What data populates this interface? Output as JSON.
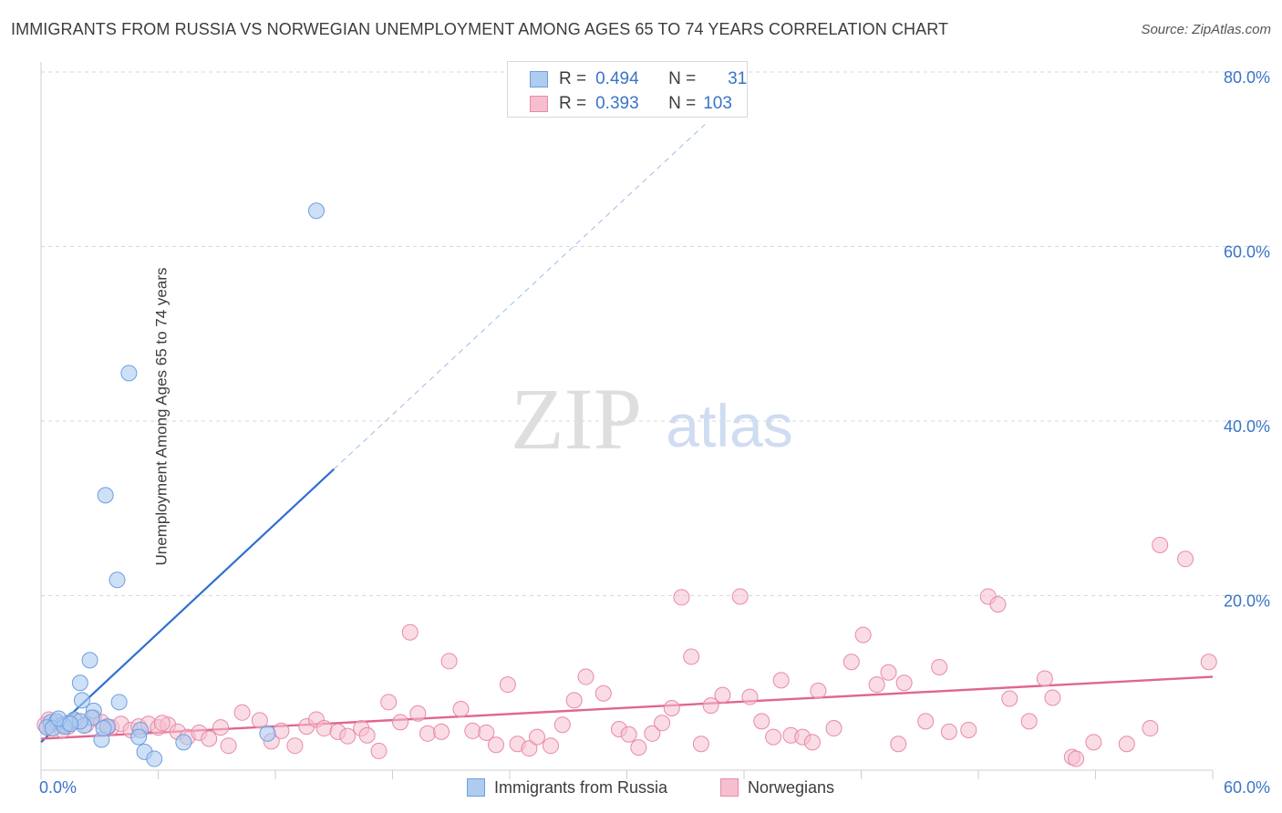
{
  "title": "IMMIGRANTS FROM RUSSIA VS NORWEGIAN UNEMPLOYMENT AMONG AGES 65 TO 74 YEARS CORRELATION CHART",
  "source": "Source: ZipAtlas.com",
  "watermark": {
    "zip": "ZIP",
    "atlas": "atlas"
  },
  "colors": {
    "blue_fill": "#aecbf0",
    "blue_stroke": "#6d9ee0",
    "blue_line": "#2f6fd0",
    "pink_fill": "#f6bfd0",
    "pink_stroke": "#e88aa8",
    "pink_line": "#e0668f",
    "axis_text": "#3a74c8",
    "grid": "#d7d7d7"
  },
  "legend": {
    "rows": [
      {
        "r_label": "R =",
        "r_value": "0.494",
        "n_label": "N =",
        "n_value": "31"
      },
      {
        "r_label": "R =",
        "r_value": "0.393",
        "n_label": "N =",
        "n_value": "103"
      }
    ]
  },
  "bottom_legend": {
    "series1": "Immigrants from Russia",
    "series2": "Norwegians"
  },
  "chart_data": {
    "type": "scatter",
    "ylabel": "Unemployment Among Ages 65 to 74 years",
    "xlabel": "",
    "xlim": [
      0,
      60
    ],
    "ylim": [
      0,
      80
    ],
    "x_tick_labels": [
      {
        "value": 0,
        "label": "0.0%"
      },
      {
        "value": 60,
        "label": "60.0%"
      }
    ],
    "y_tick_labels": [
      {
        "value": 20,
        "label": "20.0%"
      },
      {
        "value": 40,
        "label": "40.0%"
      },
      {
        "value": 60,
        "label": "60.0%"
      },
      {
        "value": 80,
        "label": "80.0%"
      }
    ],
    "series": [
      {
        "name": "Immigrants from Russia",
        "R": 0.494,
        "N": 31,
        "points": [
          [
            14.1,
            64.1
          ],
          [
            4.5,
            45.5
          ],
          [
            3.3,
            31.5
          ],
          [
            3.9,
            21.8
          ],
          [
            2.5,
            12.6
          ],
          [
            2.0,
            10.0
          ],
          [
            4.0,
            7.8
          ],
          [
            2.1,
            8.0
          ],
          [
            2.7,
            6.8
          ],
          [
            2.6,
            6.0
          ],
          [
            0.5,
            5.5
          ],
          [
            0.8,
            5.6
          ],
          [
            1.1,
            5.2
          ],
          [
            1.4,
            5.4
          ],
          [
            1.7,
            5.8
          ],
          [
            2.2,
            5.1
          ],
          [
            3.4,
            5.0
          ],
          [
            0.3,
            4.9
          ],
          [
            0.6,
            4.8
          ],
          [
            1.2,
            5.0
          ],
          [
            2.0,
            5.6
          ],
          [
            0.9,
            5.9
          ],
          [
            3.1,
            3.5
          ],
          [
            5.1,
            4.6
          ],
          [
            5.0,
            3.8
          ],
          [
            5.3,
            2.1
          ],
          [
            5.8,
            1.3
          ],
          [
            7.3,
            3.2
          ],
          [
            11.6,
            4.2
          ],
          [
            3.2,
            4.8
          ],
          [
            1.5,
            5.3
          ]
        ],
        "trend": {
          "x0": 0,
          "y0": 3.2,
          "x1": 15,
          "y1": 34.5,
          "dash_to": {
            "x": 34,
            "y": 74
          }
        }
      },
      {
        "name": "Norwegians",
        "R": 0.393,
        "N": 103,
        "points": [
          [
            0.2,
            5.2
          ],
          [
            0.5,
            4.8
          ],
          [
            0.9,
            5.4
          ],
          [
            1.4,
            5.0
          ],
          [
            1.8,
            5.6
          ],
          [
            2.3,
            5.2
          ],
          [
            2.7,
            6.0
          ],
          [
            3.1,
            5.5
          ],
          [
            3.6,
            4.9
          ],
          [
            4.1,
            5.3
          ],
          [
            4.6,
            4.6
          ],
          [
            5.0,
            5.0
          ],
          [
            5.5,
            5.3
          ],
          [
            6.0,
            4.9
          ],
          [
            6.5,
            5.2
          ],
          [
            7.0,
            4.4
          ],
          [
            7.5,
            3.8
          ],
          [
            8.1,
            4.3
          ],
          [
            8.6,
            3.6
          ],
          [
            9.2,
            4.9
          ],
          [
            9.6,
            2.8
          ],
          [
            10.3,
            6.6
          ],
          [
            11.2,
            5.7
          ],
          [
            11.8,
            3.3
          ],
          [
            12.3,
            4.5
          ],
          [
            13.0,
            2.8
          ],
          [
            13.6,
            5.0
          ],
          [
            14.1,
            5.8
          ],
          [
            14.5,
            4.8
          ],
          [
            15.2,
            4.4
          ],
          [
            15.7,
            3.9
          ],
          [
            16.4,
            4.8
          ],
          [
            16.7,
            4.0
          ],
          [
            17.3,
            2.2
          ],
          [
            17.8,
            7.8
          ],
          [
            18.4,
            5.5
          ],
          [
            18.9,
            15.8
          ],
          [
            19.3,
            6.5
          ],
          [
            19.8,
            4.2
          ],
          [
            20.5,
            4.4
          ],
          [
            20.9,
            12.5
          ],
          [
            21.5,
            7.0
          ],
          [
            22.1,
            4.5
          ],
          [
            22.8,
            4.3
          ],
          [
            23.3,
            2.9
          ],
          [
            23.9,
            9.8
          ],
          [
            24.4,
            3.0
          ],
          [
            25.0,
            2.5
          ],
          [
            25.4,
            3.8
          ],
          [
            26.1,
            2.8
          ],
          [
            26.7,
            5.2
          ],
          [
            27.3,
            8.0
          ],
          [
            27.9,
            10.7
          ],
          [
            28.8,
            8.8
          ],
          [
            29.6,
            4.7
          ],
          [
            30.1,
            4.1
          ],
          [
            30.6,
            2.6
          ],
          [
            31.3,
            4.2
          ],
          [
            31.8,
            5.4
          ],
          [
            32.3,
            7.1
          ],
          [
            32.8,
            19.8
          ],
          [
            33.3,
            13.0
          ],
          [
            33.8,
            3.0
          ],
          [
            34.3,
            7.4
          ],
          [
            34.9,
            8.6
          ],
          [
            35.8,
            19.9
          ],
          [
            36.3,
            8.4
          ],
          [
            36.9,
            5.6
          ],
          [
            37.5,
            3.8
          ],
          [
            37.9,
            10.3
          ],
          [
            38.4,
            4.0
          ],
          [
            39.0,
            3.8
          ],
          [
            39.5,
            3.2
          ],
          [
            39.8,
            9.1
          ],
          [
            40.6,
            4.8
          ],
          [
            41.5,
            12.4
          ],
          [
            42.1,
            15.5
          ],
          [
            42.8,
            9.8
          ],
          [
            43.4,
            11.2
          ],
          [
            43.9,
            3.0
          ],
          [
            44.2,
            10.0
          ],
          [
            45.3,
            5.6
          ],
          [
            46.0,
            11.8
          ],
          [
            46.5,
            4.4
          ],
          [
            47.5,
            4.6
          ],
          [
            48.5,
            19.9
          ],
          [
            49.0,
            19.0
          ],
          [
            49.6,
            8.2
          ],
          [
            50.6,
            5.6
          ],
          [
            51.4,
            10.5
          ],
          [
            51.8,
            8.3
          ],
          [
            52.8,
            1.5
          ],
          [
            53.0,
            1.3
          ],
          [
            53.9,
            3.2
          ],
          [
            55.6,
            3.0
          ],
          [
            56.8,
            4.8
          ],
          [
            57.3,
            25.8
          ],
          [
            58.6,
            24.2
          ],
          [
            59.8,
            12.4
          ],
          [
            0.4,
            5.8
          ],
          [
            1.1,
            4.6
          ],
          [
            3.4,
            4.9
          ],
          [
            6.2,
            5.4
          ]
        ],
        "trend": {
          "x0": 0,
          "y0": 3.6,
          "x1": 60,
          "y1": 10.7
        }
      }
    ]
  }
}
